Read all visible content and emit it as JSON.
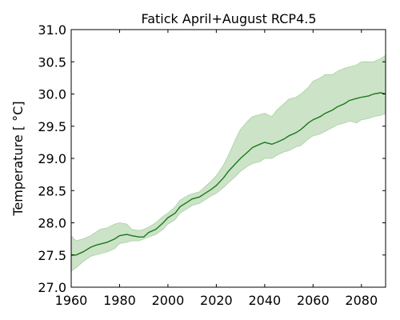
{
  "chart_data": {
    "type": "area",
    "title": "Fatick April+August RCP4.5",
    "xlabel": "",
    "ylabel": "Temperature [ °C]",
    "xlim": [
      1960,
      2090
    ],
    "ylim": [
      27.0,
      31.0
    ],
    "xticks": [
      "1960",
      "1980",
      "2000",
      "2020",
      "2040",
      "2060",
      "2080"
    ],
    "yticks": [
      "27.0",
      "27.5",
      "28.0",
      "28.5",
      "29.0",
      "29.5",
      "30.0",
      "30.5",
      "31.0"
    ],
    "grid": false,
    "colors": {
      "line": "#1a7a1a",
      "band": "#cce3c8",
      "band_edge": "#a8d0a3"
    },
    "series": [
      {
        "x": [
          1960,
          1962,
          1965,
          1968,
          1970,
          1972,
          1975,
          1978,
          1980,
          1983,
          1985,
          1988,
          1990,
          1992,
          1995,
          1998,
          2000,
          2003,
          2005,
          2008,
          2010,
          2013,
          2015,
          2018,
          2020,
          2023,
          2025,
          2028,
          2030,
          2033,
          2035,
          2038,
          2040,
          2043,
          2045,
          2048,
          2050,
          2053,
          2055,
          2058,
          2060,
          2063,
          2065,
          2068,
          2070,
          2073,
          2075,
          2078,
          2080,
          2083,
          2085,
          2088,
          2090
        ],
        "mean": [
          27.5,
          27.5,
          27.55,
          27.62,
          27.65,
          27.67,
          27.7,
          27.75,
          27.8,
          27.82,
          27.8,
          27.78,
          27.78,
          27.85,
          27.9,
          28.0,
          28.08,
          28.15,
          28.25,
          28.32,
          28.37,
          28.4,
          28.45,
          28.52,
          28.58,
          28.7,
          28.8,
          28.92,
          29.0,
          29.1,
          29.17,
          29.22,
          29.25,
          29.22,
          29.25,
          29.3,
          29.35,
          29.4,
          29.45,
          29.55,
          29.6,
          29.65,
          29.7,
          29.75,
          29.8,
          29.85,
          29.9,
          29.93,
          29.95,
          29.97,
          30.0,
          30.02,
          30.0
        ],
        "upper": [
          27.8,
          27.72,
          27.75,
          27.8,
          27.85,
          27.9,
          27.92,
          27.98,
          28.0,
          27.98,
          27.9,
          27.88,
          27.9,
          27.93,
          28.0,
          28.1,
          28.15,
          28.25,
          28.35,
          28.42,
          28.45,
          28.48,
          28.55,
          28.65,
          28.73,
          28.9,
          29.05,
          29.3,
          29.45,
          29.58,
          29.65,
          29.68,
          29.7,
          29.65,
          29.75,
          29.85,
          29.92,
          29.95,
          30.0,
          30.1,
          30.2,
          30.25,
          30.3,
          30.3,
          30.35,
          30.4,
          30.42,
          30.45,
          30.5,
          30.5,
          30.5,
          30.55,
          30.6
        ],
        "lower": [
          27.25,
          27.3,
          27.4,
          27.48,
          27.5,
          27.52,
          27.55,
          27.6,
          27.68,
          27.7,
          27.72,
          27.72,
          27.75,
          27.78,
          27.82,
          27.9,
          27.98,
          28.05,
          28.15,
          28.22,
          28.27,
          28.3,
          28.35,
          28.42,
          28.46,
          28.55,
          28.62,
          28.72,
          28.8,
          28.88,
          28.92,
          28.95,
          29.0,
          29.0,
          29.05,
          29.1,
          29.12,
          29.18,
          29.2,
          29.3,
          29.35,
          29.38,
          29.42,
          29.48,
          29.52,
          29.55,
          29.58,
          29.55,
          29.6,
          29.62,
          29.65,
          29.67,
          29.7
        ]
      }
    ]
  }
}
